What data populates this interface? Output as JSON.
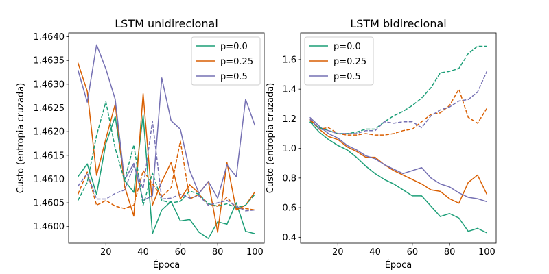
{
  "chart_data": [
    {
      "type": "line",
      "title": "LSTM unidirecional",
      "xlabel": "Época",
      "ylabel": "Custo (entropia cruzada)",
      "xlim": [
        0,
        105
      ],
      "ylim": [
        1.45965,
        1.46408
      ],
      "xticks": [
        20,
        40,
        60,
        80,
        100
      ],
      "yticks": [
        1.46,
        1.4605,
        1.461,
        1.4615,
        1.462,
        1.4625,
        1.463,
        1.4635,
        1.464
      ],
      "ytick_labels": [
        "1.4600",
        "1.4605",
        "1.4610",
        "1.4615",
        "1.4620",
        "1.4625",
        "1.4630",
        "1.4635",
        "1.4640"
      ],
      "legend_position": "top-right",
      "x": [
        5,
        10,
        15,
        20,
        25,
        30,
        35,
        40,
        45,
        50,
        55,
        60,
        65,
        70,
        75,
        80,
        85,
        90,
        95,
        100
      ],
      "series": [
        {
          "name": "p=0.0",
          "color": "#1b9e77",
          "style": "solid",
          "values": [
            1.46105,
            1.46132,
            1.46068,
            1.46175,
            1.46232,
            1.46097,
            1.46072,
            1.46235,
            1.45985,
            1.46035,
            1.46053,
            1.46012,
            1.46015,
            1.45988,
            1.45975,
            1.4601,
            1.46005,
            1.4605,
            1.4599,
            1.45985
          ]
        },
        {
          "name": "p=0.25",
          "color": "#d95f02",
          "style": "solid",
          "values": [
            1.46345,
            1.46285,
            1.46108,
            1.46185,
            1.46258,
            1.46085,
            1.46022,
            1.4628,
            1.46045,
            1.46095,
            1.46135,
            1.46058,
            1.46088,
            1.4607,
            1.46095,
            1.45988,
            1.46135,
            1.46035,
            1.46045,
            1.46073
          ]
        },
        {
          "name": "p=0.5",
          "color": "#7570b3",
          "style": "solid",
          "values": [
            1.4633,
            1.46262,
            1.46383,
            1.46332,
            1.46268,
            1.46098,
            1.46133,
            1.46055,
            1.46065,
            1.46313,
            1.46223,
            1.46205,
            1.46118,
            1.4607,
            1.46095,
            1.4606,
            1.4613,
            1.46105,
            1.46268,
            1.46213
          ]
        },
        {
          "name": "",
          "color": "#1b9e77",
          "style": "dashed",
          "values": [
            1.46055,
            1.46093,
            1.46192,
            1.46263,
            1.46165,
            1.46097,
            1.46172,
            1.46045,
            1.46113,
            1.46055,
            1.4605,
            1.46053,
            1.46075,
            1.46068,
            1.46048,
            1.46043,
            1.46048,
            1.4604,
            1.46045,
            1.46068
          ]
        },
        {
          "name": "",
          "color": "#d95f02",
          "style": "dashed",
          "values": [
            1.46068,
            1.46115,
            1.46045,
            1.46055,
            1.46043,
            1.46038,
            1.46045,
            1.46118,
            1.4609,
            1.46063,
            1.46082,
            1.4618,
            1.46058,
            1.46068,
            1.46045,
            1.46043,
            1.46062,
            1.46038,
            1.46038,
            1.46035
          ]
        },
        {
          "name": "",
          "color": "#7570b3",
          "style": "dashed",
          "values": [
            1.46085,
            1.46112,
            1.46058,
            1.46058,
            1.4607,
            1.46077,
            1.46128,
            1.4608,
            1.46222,
            1.46058,
            1.4606,
            1.46068,
            1.4606,
            1.46065,
            1.46045,
            1.4605,
            1.46055,
            1.46043,
            1.46033,
            1.46035
          ]
        }
      ]
    },
    {
      "type": "line",
      "title": "LSTM bidirecional",
      "xlabel": "Época",
      "ylabel": "Custo (entropia cruzada)",
      "xlim": [
        0,
        105
      ],
      "ylim": [
        0.36,
        1.78
      ],
      "xticks": [
        20,
        40,
        60,
        80,
        100
      ],
      "yticks": [
        0.4,
        0.6,
        0.8,
        1.0,
        1.2,
        1.4,
        1.6
      ],
      "ytick_labels": [
        "0.4",
        "0.6",
        "0.8",
        "1.0",
        "1.2",
        "1.4",
        "1.6"
      ],
      "legend_position": "top-left",
      "x": [
        5,
        10,
        15,
        20,
        25,
        30,
        35,
        40,
        45,
        50,
        55,
        60,
        65,
        70,
        75,
        80,
        85,
        90,
        95,
        100
      ],
      "series": [
        {
          "name": "p=0.0",
          "color": "#1b9e77",
          "style": "solid",
          "values": [
            1.18,
            1.11,
            1.06,
            1.02,
            0.99,
            0.94,
            0.88,
            0.83,
            0.79,
            0.76,
            0.72,
            0.68,
            0.68,
            0.61,
            0.54,
            0.56,
            0.53,
            0.44,
            0.46,
            0.43
          ]
        },
        {
          "name": "p=0.25",
          "color": "#d95f02",
          "style": "solid",
          "values": [
            1.2,
            1.13,
            1.08,
            1.06,
            1.01,
            0.98,
            0.94,
            0.94,
            0.89,
            0.85,
            0.82,
            0.79,
            0.76,
            0.72,
            0.71,
            0.66,
            0.63,
            0.77,
            0.82,
            0.69
          ]
        },
        {
          "name": "p=0.5",
          "color": "#7570b3",
          "style": "solid",
          "values": [
            1.21,
            1.15,
            1.1,
            1.07,
            1.02,
            0.99,
            0.95,
            0.93,
            0.89,
            0.86,
            0.83,
            0.85,
            0.87,
            0.8,
            0.76,
            0.74,
            0.7,
            0.67,
            0.66,
            0.64
          ]
        },
        {
          "name": "",
          "color": "#1b9e77",
          "style": "dashed",
          "values": [
            1.18,
            1.14,
            1.12,
            1.1,
            1.1,
            1.11,
            1.13,
            1.13,
            1.18,
            1.22,
            1.25,
            1.29,
            1.34,
            1.41,
            1.51,
            1.52,
            1.54,
            1.64,
            1.69,
            1.69
          ]
        },
        {
          "name": "",
          "color": "#d95f02",
          "style": "dashed",
          "values": [
            1.19,
            1.13,
            1.14,
            1.1,
            1.09,
            1.09,
            1.1,
            1.09,
            1.09,
            1.1,
            1.12,
            1.13,
            1.18,
            1.23,
            1.24,
            1.29,
            1.4,
            1.21,
            1.17,
            1.27
          ]
        },
        {
          "name": "",
          "color": "#7570b3",
          "style": "dashed",
          "values": [
            1.2,
            1.13,
            1.12,
            1.1,
            1.1,
            1.1,
            1.12,
            1.12,
            1.18,
            1.17,
            1.18,
            1.18,
            1.14,
            1.22,
            1.26,
            1.28,
            1.32,
            1.33,
            1.38,
            1.52
          ]
        }
      ]
    }
  ]
}
